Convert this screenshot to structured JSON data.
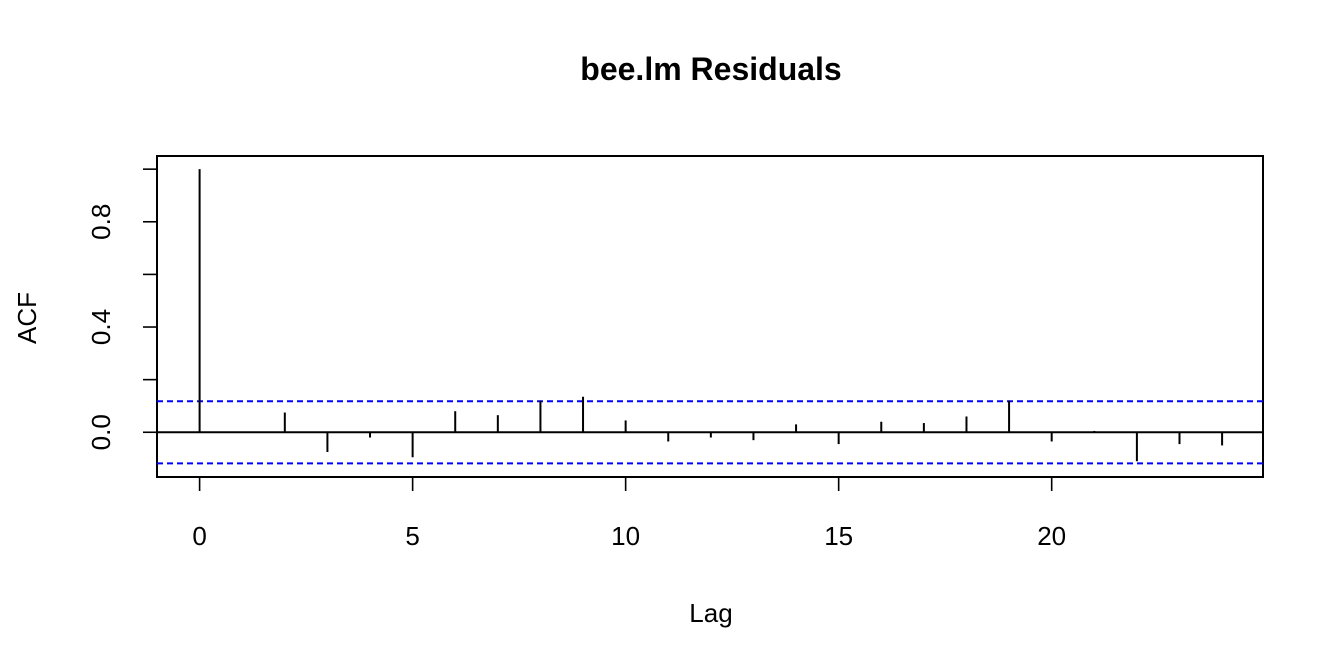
{
  "chart_data": {
    "type": "bar",
    "title": "bee.lm Residuals",
    "xlabel": "Lag",
    "ylabel": "ACF",
    "x_ticks": [
      0,
      5,
      10,
      15,
      20
    ],
    "y_ticks": [
      0.0,
      0.4,
      0.8
    ],
    "y_tick_labels": [
      "0.0",
      "0.4",
      "0.8"
    ],
    "y_minor_ticks": [
      0.2,
      0.6,
      1.0
    ],
    "xlim": [
      -1,
      24.96
    ],
    "ylim": [
      -0.17,
      1.05
    ],
    "confidence_bound": 0.118,
    "lags": [
      0,
      1,
      2,
      3,
      4,
      5,
      6,
      7,
      8,
      9,
      10,
      11,
      12,
      13,
      14,
      15,
      16,
      17,
      18,
      19,
      20,
      21,
      22,
      23,
      24
    ],
    "acf": [
      1.0,
      0.0,
      0.075,
      -0.075,
      -0.02,
      -0.095,
      0.08,
      0.065,
      0.12,
      0.135,
      0.045,
      -0.035,
      -0.02,
      -0.03,
      0.03,
      -0.045,
      0.04,
      0.035,
      0.06,
      0.12,
      -0.035,
      0.005,
      -0.11,
      -0.045,
      -0.05
    ],
    "colors": {
      "spikes": "#000000",
      "confidence": "#0000ff"
    }
  }
}
